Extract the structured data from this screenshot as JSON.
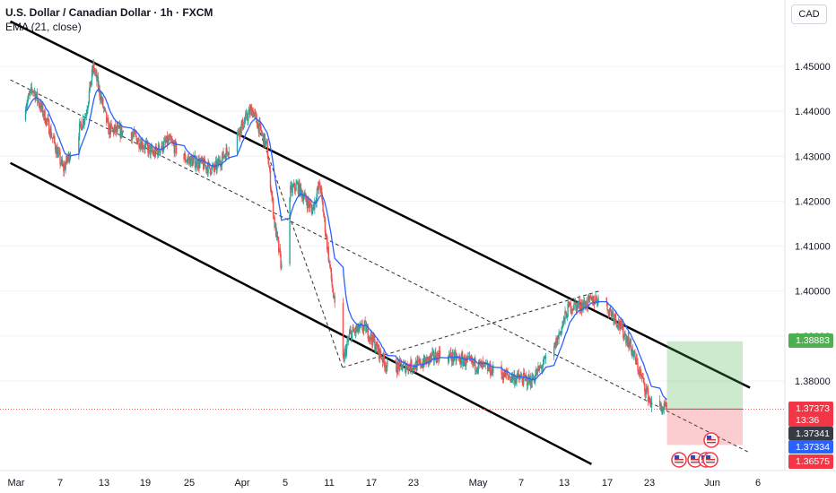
{
  "header": {
    "symbol": "U.S. Dollar / Canadian Dollar · 1h · FXCM",
    "indicator": "EMA (21, close)",
    "currency": "CAD"
  },
  "colors": {
    "up": "#26a69a",
    "down": "#ef5350",
    "ema": "#2962ff",
    "target": "#4caf50",
    "stop": "#f23645",
    "last_line": "#ef5350",
    "channel": "#000000"
  },
  "chart_data": {
    "type": "candlestick",
    "timeframe": "1h",
    "ylim": [
      1.3625,
      1.4555
    ],
    "y_ticks": [
      "1.45000",
      "1.44000",
      "1.43000",
      "1.42000",
      "1.41000",
      "1.40000",
      "1.39000",
      "1.38000"
    ],
    "x_ticks": [
      "Mar",
      "7",
      "13",
      "19",
      "25",
      "Apr",
      "5",
      "11",
      "17",
      "23",
      "May",
      "7",
      "13",
      "17",
      "23",
      "Jun",
      "6"
    ],
    "price_path": [
      [
        "Mar 1",
        1.438
      ],
      [
        "Mar 3",
        1.445
      ],
      [
        "Mar 5",
        1.437
      ],
      [
        "Mar 7",
        1.427
      ],
      [
        "Mar 10",
        1.4395
      ],
      [
        "Mar 11",
        1.45
      ],
      [
        "Mar 13",
        1.436
      ],
      [
        "Mar 16",
        1.435
      ],
      [
        "Mar 19",
        1.4305
      ],
      [
        "Mar 21",
        1.4335
      ],
      [
        "Mar 23",
        1.4295
      ],
      [
        "Mar 25",
        1.4285
      ],
      [
        "Mar 27",
        1.427
      ],
      [
        "Mar 29",
        1.432
      ],
      [
        "Apr 1",
        1.4405
      ],
      [
        "Apr 3",
        1.432
      ],
      [
        "Apr 4",
        1.415
      ],
      [
        "Apr 5",
        1.4045
      ],
      [
        "Apr 6",
        1.422
      ],
      [
        "Apr 7",
        1.4235
      ],
      [
        "Apr 9",
        1.418
      ],
      [
        "Apr 10",
        1.424
      ],
      [
        "Apr 11",
        1.41
      ],
      [
        "Apr 12",
        1.396
      ],
      [
        "Apr 13",
        1.384
      ],
      [
        "Apr 14",
        1.3905
      ],
      [
        "Apr 16",
        1.392
      ],
      [
        "Apr 19",
        1.383
      ],
      [
        "Apr 23",
        1.3835
      ],
      [
        "Apr 26",
        1.386
      ],
      [
        "May 1",
        1.3835
      ],
      [
        "May 5",
        1.381
      ],
      [
        "May 8",
        1.38
      ],
      [
        "May 11",
        1.387
      ],
      [
        "May 13",
        1.3965
      ],
      [
        "May 15",
        1.397
      ],
      [
        "May 17",
        1.3985
      ],
      [
        "May 19",
        1.3945
      ],
      [
        "May 21",
        1.3885
      ],
      [
        "May 23",
        1.379
      ],
      [
        "May 24",
        1.3745
      ],
      [
        "May 26",
        1.3737
      ]
    ],
    "ema_period": 21,
    "last_price": "1.37373",
    "countdown": "13:36",
    "bid_price": "1.37341",
    "ema_price": "1.37334",
    "position": {
      "entry": 1.37373,
      "target_price": "1.38883",
      "stop_price": "1.36575"
    },
    "channel_lines": [
      {
        "from": [
          "Feb 28",
          1.46
        ],
        "to": [
          "Jun 6",
          1.3785
        ]
      },
      {
        "from": [
          "Feb 28",
          1.4285
        ],
        "to": [
          "May 16",
          1.3615
        ]
      }
    ],
    "dashed_lines": [
      {
        "from": [
          "Feb 28",
          1.447
        ],
        "to": [
          "Jun 6",
          1.364
        ]
      },
      {
        "from": [
          "Apr 1",
          1.4405
        ],
        "to": [
          "Apr 13",
          1.383
        ]
      },
      {
        "from": [
          "Apr 13",
          1.383
        ],
        "to": [
          "May 17",
          1.4
        ]
      }
    ],
    "events": [
      "US",
      "US",
      "US",
      "US",
      "US"
    ]
  }
}
